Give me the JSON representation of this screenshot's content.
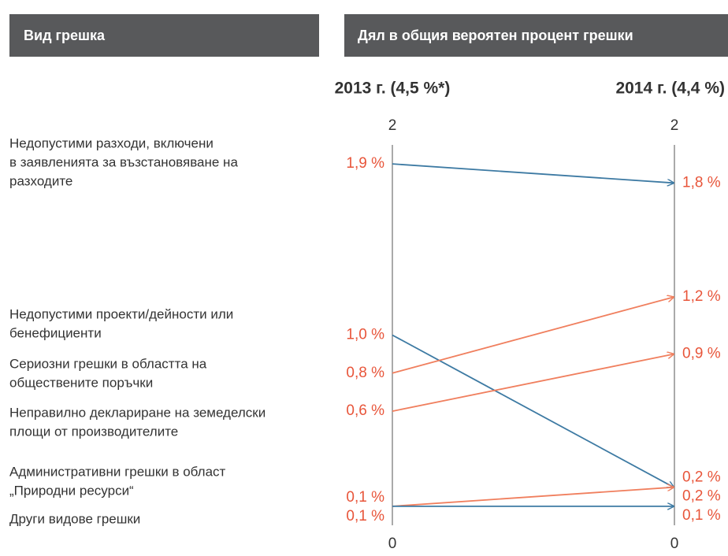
{
  "header": {
    "left": "Вид грешка",
    "right": "Дял в общия вероятен процент грешки"
  },
  "chart_data": {
    "type": "slope",
    "categories": [
      "2013 г. (4,5 %*)",
      "2014 г. (4,4 %)"
    ],
    "ylim": [
      0,
      2
    ],
    "yticks": [
      0,
      2
    ],
    "series": [
      {
        "name_lines": [
          "Недопустими разходи, включени",
          "в заявленията за възстановяване на",
          "разходите"
        ],
        "color": "#3d7aa3",
        "values": [
          1.9,
          1.8
        ],
        "value_labels": [
          "1,9 %",
          "1,8 %"
        ]
      },
      {
        "name_lines": [
          "Недопустими проекти/дейности или",
          "бенефициенти"
        ],
        "color": "#3d7aa3",
        "values": [
          1.0,
          0.2
        ],
        "value_labels": [
          "1,0 %",
          "0,2 %"
        ]
      },
      {
        "name_lines": [
          "Сериозни грешки в областта на",
          "обществените поръчки"
        ],
        "color": "#f07f5e",
        "values": [
          0.8,
          1.2
        ],
        "value_labels": [
          "0,8 %",
          "1,2 %"
        ]
      },
      {
        "name_lines": [
          "Неправилно деклариране на земеделски",
          "площи от производителите"
        ],
        "color": "#f07f5e",
        "values": [
          0.6,
          0.9
        ],
        "value_labels": [
          "0,6 %",
          "0,9 %"
        ]
      },
      {
        "name_lines": [
          "Административни грешки в област",
          "„Природни ресурси“"
        ],
        "color": "#f07f5e",
        "values": [
          0.1,
          0.2
        ],
        "value_labels": [
          "0,1 %",
          "0,2 %"
        ]
      },
      {
        "name_lines": [
          "Други видове грешки"
        ],
        "color": "#3d7aa3",
        "values": [
          0.1,
          0.1
        ],
        "value_labels": [
          "0,1 %",
          "0,1 %"
        ]
      }
    ]
  }
}
